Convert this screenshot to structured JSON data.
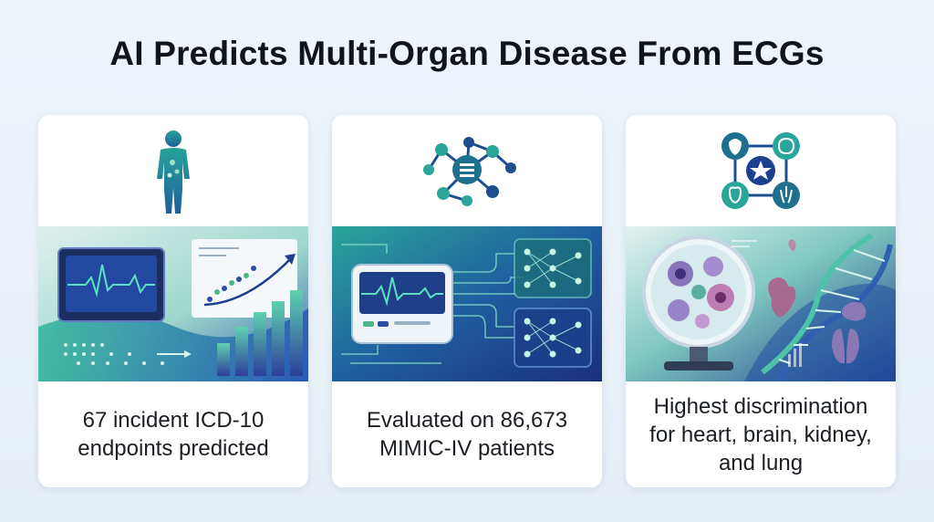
{
  "title": "AI Predicts Multi-Organ Disease From ECGs",
  "cards": [
    {
      "icon": "human-body-icon",
      "illustration": "ecg-monitor-growth-chart",
      "caption": "67 incident ICD-10\nendpoints predicted"
    },
    {
      "icon": "neural-network-icon",
      "illustration": "ecg-device-neural-network",
      "caption": "Evaluated on 86,673\nMIMIC-IV patients"
    },
    {
      "icon": "multi-organ-network-icon",
      "illustration": "microscope-dna-organs",
      "caption": "Highest discrimination\nfor heart, brain, kidney,\nand lung"
    }
  ],
  "colors": {
    "teal": "#2a9d9a",
    "navy": "#1d3f8f",
    "green": "#4cb88a",
    "background": "#eaf1f8"
  }
}
